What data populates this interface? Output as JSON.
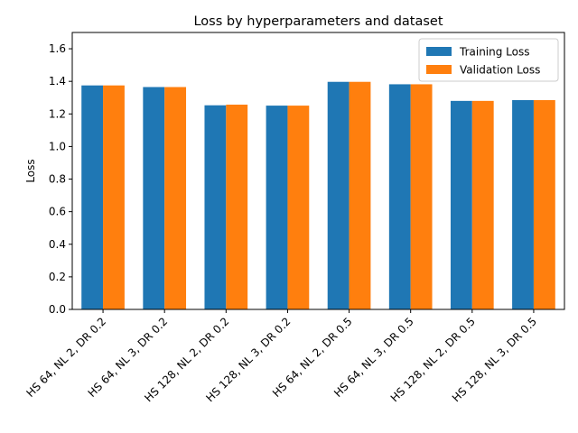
{
  "chart_data": {
    "type": "bar",
    "title": "Loss by hyperparameters and dataset",
    "xlabel": "",
    "ylabel": "Loss",
    "ylim": [
      0,
      1.7
    ],
    "yticks": [
      "0.0",
      "0.2",
      "0.4",
      "0.6",
      "0.8",
      "1.0",
      "1.2",
      "1.4",
      "1.6"
    ],
    "categories": [
      "HS 64, NL 2, DR 0.2",
      "HS 64, NL 3, DR 0.2",
      "HS 128, NL 2, DR 0.2",
      "HS 128, NL 3, DR 0.2",
      "HS 64, NL 2, DR 0.5",
      "HS 64, NL 3, DR 0.5",
      "HS 128, NL 2, DR 0.5",
      "HS 128, NL 3, DR 0.5"
    ],
    "series": [
      {
        "name": "Training Loss",
        "color": "#1f77b4",
        "values": [
          1.375,
          1.365,
          1.253,
          1.251,
          1.397,
          1.382,
          1.28,
          1.285
        ]
      },
      {
        "name": "Validation Loss",
        "color": "#ff7f0e",
        "values": [
          1.375,
          1.365,
          1.257,
          1.251,
          1.397,
          1.382,
          1.28,
          1.285
        ]
      }
    ],
    "legend_position": "top-right",
    "grid": false
  }
}
